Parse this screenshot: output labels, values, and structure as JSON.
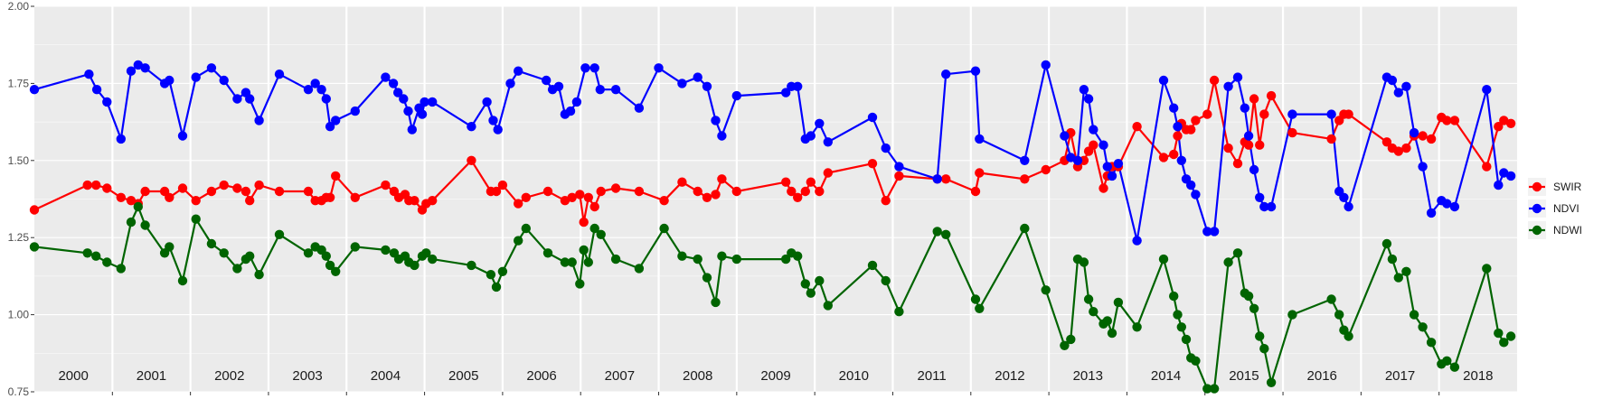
{
  "chart_data": {
    "type": "line",
    "title": "",
    "xlabel": "",
    "ylabel": "",
    "xlim": [
      2000.0,
      2019.0
    ],
    "ylim": [
      0.75,
      2.0
    ],
    "y_ticks": [
      "0.75",
      "1.00",
      "1.25",
      "1.50",
      "1.75",
      "2.00"
    ],
    "y_tick_values": [
      0.75,
      1.0,
      1.25,
      1.5,
      1.75,
      2.0
    ],
    "year_panels": [
      "2000",
      "2001",
      "2002",
      "2003",
      "2004",
      "2005",
      "2006",
      "2007",
      "2008",
      "2009",
      "2010",
      "2011",
      "2012",
      "2013",
      "2014",
      "2015",
      "2016",
      "2017",
      "2018"
    ],
    "grid": true,
    "legend_position": "right",
    "series": [
      {
        "name": "SWIR",
        "color": "#FF0000",
        "x": [
          2000.0,
          2000.68,
          2000.79,
          2000.93,
          2001.11,
          2001.24,
          2001.33,
          2001.42,
          2001.67,
          2001.73,
          2001.9,
          2002.07,
          2002.27,
          2002.43,
          2002.6,
          2002.71,
          2002.76,
          2002.88,
          2003.14,
          2003.51,
          2003.6,
          2003.68,
          2003.74,
          2003.79,
          2003.86,
          2004.11,
          2004.5,
          2004.61,
          2004.67,
          2004.75,
          2004.8,
          2004.87,
          2004.97,
          2005.02,
          2005.1,
          2005.6,
          2005.85,
          2005.92,
          2006.0,
          2006.2,
          2006.3,
          2006.58,
          2006.8,
          2006.89,
          2006.99,
          2007.04,
          2007.1,
          2007.18,
          2007.26,
          2007.45,
          2007.75,
          2008.07,
          2008.3,
          2008.5,
          2008.62,
          2008.73,
          2008.81,
          2009.0,
          2009.63,
          2009.7,
          2009.78,
          2009.88,
          2009.95,
          2010.06,
          2010.17,
          2010.74,
          2010.91,
          2011.08,
          2011.57,
          2011.68,
          2012.06,
          2012.11,
          2012.69,
          2012.96,
          2013.2,
          2013.28,
          2013.37,
          2013.45,
          2013.51,
          2013.57,
          2013.7,
          2013.75,
          2013.81,
          2013.89,
          2014.13,
          2014.47,
          2014.6,
          2014.65,
          2014.7,
          2014.76,
          2014.82,
          2014.88,
          2015.03,
          2015.12,
          2015.3,
          2015.42,
          2015.51,
          2015.56,
          2015.63,
          2015.7,
          2015.76,
          2015.85,
          2016.12,
          2016.62,
          2016.72,
          2016.78,
          2016.84,
          2017.33,
          2017.4,
          2017.48,
          2017.58,
          2017.68,
          2017.79,
          2017.9,
          2018.03,
          2018.1,
          2018.2,
          2018.61,
          2018.76,
          2018.83,
          2018.92
        ],
        "y": [
          1.34,
          1.42,
          1.42,
          1.41,
          1.38,
          1.37,
          1.36,
          1.4,
          1.4,
          1.38,
          1.41,
          1.37,
          1.4,
          1.42,
          1.41,
          1.4,
          1.37,
          1.42,
          1.4,
          1.4,
          1.37,
          1.37,
          1.38,
          1.38,
          1.45,
          1.38,
          1.42,
          1.4,
          1.38,
          1.39,
          1.37,
          1.37,
          1.34,
          1.36,
          1.37,
          1.5,
          1.4,
          1.4,
          1.42,
          1.36,
          1.38,
          1.4,
          1.37,
          1.38,
          1.39,
          1.3,
          1.38,
          1.35,
          1.4,
          1.41,
          1.4,
          1.37,
          1.43,
          1.4,
          1.38,
          1.39,
          1.44,
          1.4,
          1.43,
          1.4,
          1.38,
          1.4,
          1.43,
          1.4,
          1.46,
          1.49,
          1.37,
          1.45,
          1.44,
          1.44,
          1.4,
          1.46,
          1.44,
          1.47,
          1.5,
          1.59,
          1.48,
          1.5,
          1.53,
          1.55,
          1.41,
          1.45,
          1.48,
          1.48,
          1.61,
          1.51,
          1.52,
          1.58,
          1.62,
          1.6,
          1.6,
          1.63,
          1.65,
          1.76,
          1.54,
          1.49,
          1.56,
          1.55,
          1.7,
          1.55,
          1.65,
          1.71,
          1.59,
          1.57,
          1.63,
          1.65,
          1.65,
          1.56,
          1.54,
          1.53,
          1.54,
          1.58,
          1.58,
          1.57,
          1.64,
          1.63,
          1.63,
          1.48,
          1.61,
          1.63,
          1.62
        ]
      },
      {
        "name": "NDVI",
        "color": "#0000FF",
        "x": [
          2000.0,
          2000.7,
          2000.8,
          2000.93,
          2001.11,
          2001.24,
          2001.33,
          2001.42,
          2001.67,
          2001.73,
          2001.9,
          2002.07,
          2002.27,
          2002.43,
          2002.6,
          2002.71,
          2002.76,
          2002.88,
          2003.14,
          2003.51,
          2003.6,
          2003.68,
          2003.74,
          2003.79,
          2003.86,
          2004.11,
          2004.5,
          2004.6,
          2004.66,
          2004.73,
          2004.79,
          2004.84,
          2004.93,
          2004.97,
          2005.0,
          2005.1,
          2005.6,
          2005.8,
          2005.88,
          2005.94,
          2006.1,
          2006.2,
          2006.56,
          2006.64,
          2006.72,
          2006.8,
          2006.87,
          2006.95,
          2007.06,
          2007.18,
          2007.25,
          2007.45,
          2007.75,
          2008.0,
          2008.3,
          2008.5,
          2008.62,
          2008.73,
          2008.81,
          2009.0,
          2009.63,
          2009.7,
          2009.78,
          2009.88,
          2009.95,
          2010.06,
          2010.17,
          2010.74,
          2010.91,
          2011.08,
          2011.57,
          2011.68,
          2012.06,
          2012.11,
          2012.69,
          2012.96,
          2013.2,
          2013.28,
          2013.37,
          2013.45,
          2013.51,
          2013.57,
          2013.7,
          2013.75,
          2013.81,
          2013.89,
          2014.13,
          2014.47,
          2014.6,
          2014.65,
          2014.7,
          2014.76,
          2014.82,
          2014.88,
          2015.03,
          2015.12,
          2015.3,
          2015.42,
          2015.51,
          2015.56,
          2015.63,
          2015.7,
          2015.76,
          2015.85,
          2016.12,
          2016.62,
          2016.72,
          2016.78,
          2016.84,
          2017.33,
          2017.4,
          2017.48,
          2017.58,
          2017.68,
          2017.79,
          2017.9,
          2018.03,
          2018.1,
          2018.2,
          2018.61,
          2018.76,
          2018.83,
          2018.92
        ],
        "y": [
          1.73,
          1.78,
          1.73,
          1.69,
          1.57,
          1.79,
          1.81,
          1.8,
          1.75,
          1.76,
          1.58,
          1.77,
          1.8,
          1.76,
          1.7,
          1.72,
          1.7,
          1.63,
          1.78,
          1.73,
          1.75,
          1.73,
          1.7,
          1.61,
          1.63,
          1.66,
          1.77,
          1.75,
          1.72,
          1.7,
          1.66,
          1.6,
          1.67,
          1.65,
          1.69,
          1.69,
          1.61,
          1.69,
          1.63,
          1.6,
          1.75,
          1.79,
          1.76,
          1.73,
          1.74,
          1.65,
          1.66,
          1.69,
          1.8,
          1.8,
          1.73,
          1.73,
          1.67,
          1.8,
          1.75,
          1.77,
          1.74,
          1.63,
          1.58,
          1.71,
          1.72,
          1.74,
          1.74,
          1.57,
          1.58,
          1.62,
          1.56,
          1.64,
          1.54,
          1.48,
          1.44,
          1.78,
          1.79,
          1.57,
          1.5,
          1.81,
          1.58,
          1.51,
          1.5,
          1.73,
          1.7,
          1.6,
          1.55,
          1.48,
          1.45,
          1.49,
          1.24,
          1.76,
          1.67,
          1.61,
          1.5,
          1.44,
          1.42,
          1.39,
          1.27,
          1.27,
          1.74,
          1.77,
          1.67,
          1.58,
          1.47,
          1.38,
          1.35,
          1.35,
          1.65,
          1.65,
          1.4,
          1.38,
          1.35,
          1.77,
          1.76,
          1.72,
          1.74,
          1.59,
          1.48,
          1.33,
          1.37,
          1.36,
          1.35,
          1.73,
          1.42,
          1.46,
          1.45
        ]
      },
      {
        "name": "NDWI",
        "color": "#006400",
        "x": [
          2000.0,
          2000.68,
          2000.79,
          2000.93,
          2001.11,
          2001.24,
          2001.33,
          2001.42,
          2001.67,
          2001.73,
          2001.9,
          2002.07,
          2002.27,
          2002.43,
          2002.6,
          2002.71,
          2002.76,
          2002.88,
          2003.14,
          2003.51,
          2003.6,
          2003.68,
          2003.74,
          2003.79,
          2003.86,
          2004.11,
          2004.5,
          2004.61,
          2004.67,
          2004.75,
          2004.8,
          2004.87,
          2004.97,
          2005.02,
          2005.1,
          2005.6,
          2005.85,
          2005.92,
          2006.0,
          2006.2,
          2006.3,
          2006.58,
          2006.8,
          2006.89,
          2006.99,
          2007.04,
          2007.1,
          2007.18,
          2007.26,
          2007.45,
          2007.75,
          2008.07,
          2008.3,
          2008.5,
          2008.62,
          2008.73,
          2008.81,
          2009.0,
          2009.63,
          2009.7,
          2009.78,
          2009.88,
          2009.95,
          2010.06,
          2010.17,
          2010.74,
          2010.91,
          2011.08,
          2011.57,
          2011.68,
          2012.06,
          2012.11,
          2012.69,
          2012.96,
          2013.2,
          2013.28,
          2013.37,
          2013.45,
          2013.51,
          2013.57,
          2013.7,
          2013.75,
          2013.81,
          2013.89,
          2014.13,
          2014.47,
          2014.6,
          2014.65,
          2014.7,
          2014.76,
          2014.82,
          2014.88,
          2015.03,
          2015.12,
          2015.3,
          2015.42,
          2015.51,
          2015.56,
          2015.63,
          2015.7,
          2015.76,
          2015.85,
          2016.12,
          2016.62,
          2016.72,
          2016.78,
          2016.84,
          2017.33,
          2017.4,
          2017.48,
          2017.58,
          2017.68,
          2017.79,
          2017.9,
          2018.03,
          2018.1,
          2018.2,
          2018.61,
          2018.76,
          2018.83,
          2018.92
        ],
        "y": [
          1.22,
          1.2,
          1.19,
          1.17,
          1.15,
          1.3,
          1.35,
          1.29,
          1.2,
          1.22,
          1.11,
          1.31,
          1.23,
          1.2,
          1.15,
          1.18,
          1.19,
          1.13,
          1.26,
          1.2,
          1.22,
          1.21,
          1.19,
          1.16,
          1.14,
          1.22,
          1.21,
          1.2,
          1.18,
          1.19,
          1.17,
          1.16,
          1.19,
          1.2,
          1.18,
          1.16,
          1.13,
          1.09,
          1.14,
          1.24,
          1.28,
          1.2,
          1.17,
          1.17,
          1.1,
          1.21,
          1.17,
          1.28,
          1.26,
          1.18,
          1.15,
          1.28,
          1.19,
          1.18,
          1.12,
          1.04,
          1.19,
          1.18,
          1.18,
          1.2,
          1.19,
          1.1,
          1.07,
          1.11,
          1.03,
          1.16,
          1.11,
          1.01,
          1.27,
          1.26,
          1.05,
          1.02,
          1.28,
          1.08,
          0.9,
          0.92,
          1.18,
          1.17,
          1.05,
          1.01,
          0.97,
          0.98,
          0.94,
          1.04,
          0.96,
          1.18,
          1.06,
          1.0,
          0.96,
          0.92,
          0.86,
          0.85,
          0.76,
          0.76,
          1.17,
          1.2,
          1.07,
          1.06,
          1.02,
          0.93,
          0.89,
          0.78,
          1.0,
          1.05,
          1.0,
          0.95,
          0.93,
          1.23,
          1.18,
          1.12,
          1.14,
          1.0,
          0.96,
          0.91,
          0.84,
          0.85,
          0.83,
          1.15,
          0.94,
          0.91,
          0.93
        ]
      }
    ]
  }
}
